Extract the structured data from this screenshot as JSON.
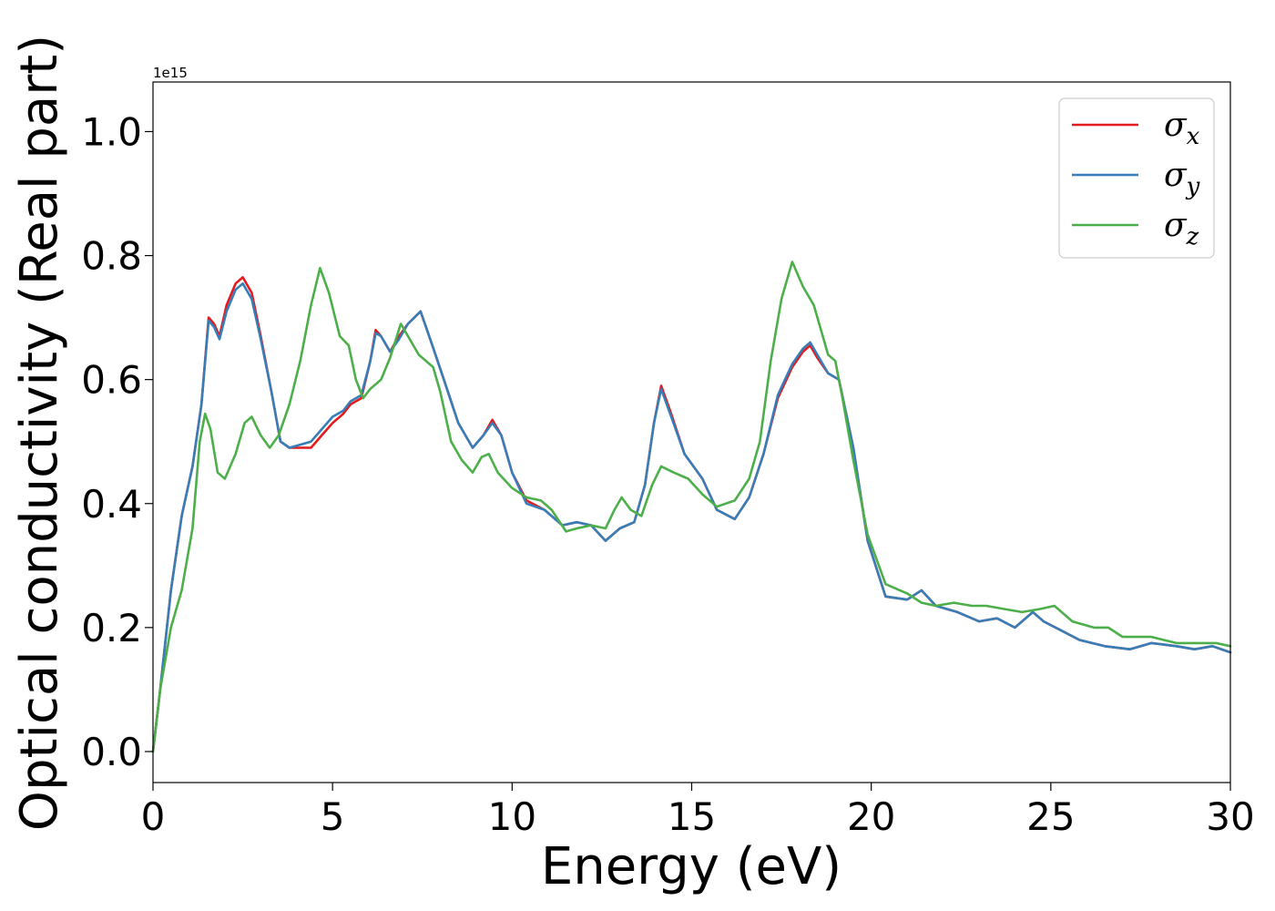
{
  "chart_data": {
    "type": "line",
    "xlabel": "Energy (eV)",
    "ylabel": "Optical conductivity (Real part)",
    "y_offset_label": "1e15",
    "xlim": [
      0,
      30
    ],
    "ylim": [
      -0.05,
      1.08
    ],
    "x_ticks": [
      0,
      5,
      10,
      15,
      20,
      25,
      30
    ],
    "y_ticks": [
      0.0,
      0.2,
      0.4,
      0.6,
      0.8,
      1.0
    ],
    "x_tick_labels": [
      "0",
      "5",
      "10",
      "15",
      "20",
      "25",
      "30"
    ],
    "y_tick_labels": [
      "0.0",
      "0.2",
      "0.4",
      "0.6",
      "0.8",
      "1.0"
    ],
    "grid": false,
    "legend_position": "top-right",
    "series": [
      {
        "name": "σ",
        "subscript": "x",
        "color": "#e41a1c",
        "points": [
          [
            0,
            0
          ],
          [
            0.2,
            0.1
          ],
          [
            0.5,
            0.26
          ],
          [
            0.8,
            0.38
          ],
          [
            1.1,
            0.46
          ],
          [
            1.35,
            0.56
          ],
          [
            1.55,
            0.7
          ],
          [
            1.7,
            0.69
          ],
          [
            1.85,
            0.67
          ],
          [
            2.05,
            0.72
          ],
          [
            2.3,
            0.755
          ],
          [
            2.5,
            0.765
          ],
          [
            2.75,
            0.74
          ],
          [
            3.0,
            0.67
          ],
          [
            3.3,
            0.58
          ],
          [
            3.55,
            0.5
          ],
          [
            3.8,
            0.49
          ],
          [
            4.1,
            0.49
          ],
          [
            4.4,
            0.49
          ],
          [
            4.7,
            0.51
          ],
          [
            5.0,
            0.53
          ],
          [
            5.3,
            0.545
          ],
          [
            5.5,
            0.56
          ],
          [
            5.8,
            0.57
          ],
          [
            6.05,
            0.63
          ],
          [
            6.2,
            0.68
          ],
          [
            6.35,
            0.67
          ],
          [
            6.6,
            0.645
          ],
          [
            6.85,
            0.67
          ],
          [
            7.1,
            0.69
          ],
          [
            7.45,
            0.71
          ],
          [
            7.75,
            0.66
          ],
          [
            8.1,
            0.6
          ],
          [
            8.5,
            0.53
          ],
          [
            8.9,
            0.49
          ],
          [
            9.2,
            0.51
          ],
          [
            9.45,
            0.535
          ],
          [
            9.7,
            0.51
          ],
          [
            10.0,
            0.45
          ],
          [
            10.4,
            0.405
          ],
          [
            10.9,
            0.39
          ],
          [
            11.4,
            0.365
          ],
          [
            11.8,
            0.37
          ],
          [
            12.2,
            0.365
          ],
          [
            12.6,
            0.34
          ],
          [
            13.0,
            0.36
          ],
          [
            13.4,
            0.37
          ],
          [
            13.7,
            0.43
          ],
          [
            13.95,
            0.53
          ],
          [
            14.15,
            0.59
          ],
          [
            14.4,
            0.55
          ],
          [
            14.8,
            0.48
          ],
          [
            15.3,
            0.44
          ],
          [
            15.7,
            0.39
          ],
          [
            16.2,
            0.375
          ],
          [
            16.6,
            0.41
          ],
          [
            17.0,
            0.48
          ],
          [
            17.4,
            0.57
          ],
          [
            17.8,
            0.62
          ],
          [
            18.1,
            0.645
          ],
          [
            18.3,
            0.655
          ],
          [
            18.5,
            0.635
          ],
          [
            18.8,
            0.61
          ],
          [
            19.1,
            0.6
          ],
          [
            19.5,
            0.49
          ],
          [
            19.9,
            0.34
          ],
          [
            20.4,
            0.25
          ],
          [
            21.0,
            0.245
          ],
          [
            21.4,
            0.26
          ],
          [
            21.8,
            0.235
          ],
          [
            22.4,
            0.225
          ],
          [
            23.0,
            0.21
          ],
          [
            23.5,
            0.215
          ],
          [
            24.0,
            0.2
          ],
          [
            24.5,
            0.225
          ],
          [
            24.8,
            0.21
          ],
          [
            25.3,
            0.195
          ],
          [
            25.8,
            0.18
          ],
          [
            26.5,
            0.17
          ],
          [
            27.2,
            0.165
          ],
          [
            27.8,
            0.175
          ],
          [
            28.5,
            0.17
          ],
          [
            29.0,
            0.165
          ],
          [
            29.5,
            0.17
          ],
          [
            30.0,
            0.16
          ]
        ]
      },
      {
        "name": "σ",
        "subscript": "y",
        "color": "#377eb8",
        "points": [
          [
            0,
            0
          ],
          [
            0.2,
            0.1
          ],
          [
            0.5,
            0.26
          ],
          [
            0.8,
            0.38
          ],
          [
            1.1,
            0.46
          ],
          [
            1.35,
            0.56
          ],
          [
            1.55,
            0.695
          ],
          [
            1.7,
            0.685
          ],
          [
            1.85,
            0.665
          ],
          [
            2.05,
            0.71
          ],
          [
            2.3,
            0.745
          ],
          [
            2.5,
            0.755
          ],
          [
            2.75,
            0.73
          ],
          [
            3.0,
            0.665
          ],
          [
            3.3,
            0.58
          ],
          [
            3.55,
            0.5
          ],
          [
            3.8,
            0.49
          ],
          [
            4.1,
            0.495
          ],
          [
            4.4,
            0.5
          ],
          [
            4.7,
            0.52
          ],
          [
            5.0,
            0.54
          ],
          [
            5.3,
            0.55
          ],
          [
            5.5,
            0.565
          ],
          [
            5.8,
            0.575
          ],
          [
            6.05,
            0.63
          ],
          [
            6.2,
            0.675
          ],
          [
            6.35,
            0.67
          ],
          [
            6.6,
            0.645
          ],
          [
            6.85,
            0.665
          ],
          [
            7.1,
            0.69
          ],
          [
            7.45,
            0.71
          ],
          [
            7.75,
            0.66
          ],
          [
            8.1,
            0.6
          ],
          [
            8.5,
            0.53
          ],
          [
            8.9,
            0.49
          ],
          [
            9.2,
            0.51
          ],
          [
            9.45,
            0.53
          ],
          [
            9.7,
            0.51
          ],
          [
            10.0,
            0.45
          ],
          [
            10.4,
            0.4
          ],
          [
            10.9,
            0.39
          ],
          [
            11.4,
            0.365
          ],
          [
            11.8,
            0.37
          ],
          [
            12.2,
            0.365
          ],
          [
            12.6,
            0.34
          ],
          [
            13.0,
            0.36
          ],
          [
            13.4,
            0.37
          ],
          [
            13.7,
            0.43
          ],
          [
            13.95,
            0.53
          ],
          [
            14.15,
            0.585
          ],
          [
            14.4,
            0.545
          ],
          [
            14.8,
            0.48
          ],
          [
            15.3,
            0.44
          ],
          [
            15.7,
            0.39
          ],
          [
            16.2,
            0.375
          ],
          [
            16.6,
            0.41
          ],
          [
            17.0,
            0.48
          ],
          [
            17.4,
            0.575
          ],
          [
            17.8,
            0.625
          ],
          [
            18.1,
            0.65
          ],
          [
            18.3,
            0.66
          ],
          [
            18.5,
            0.64
          ],
          [
            18.8,
            0.61
          ],
          [
            19.1,
            0.6
          ],
          [
            19.5,
            0.49
          ],
          [
            19.9,
            0.34
          ],
          [
            20.4,
            0.25
          ],
          [
            21.0,
            0.245
          ],
          [
            21.4,
            0.26
          ],
          [
            21.8,
            0.235
          ],
          [
            22.4,
            0.225
          ],
          [
            23.0,
            0.21
          ],
          [
            23.5,
            0.215
          ],
          [
            24.0,
            0.2
          ],
          [
            24.5,
            0.225
          ],
          [
            24.8,
            0.21
          ],
          [
            25.3,
            0.195
          ],
          [
            25.8,
            0.18
          ],
          [
            26.5,
            0.17
          ],
          [
            27.2,
            0.165
          ],
          [
            27.8,
            0.175
          ],
          [
            28.5,
            0.17
          ],
          [
            29.0,
            0.165
          ],
          [
            29.5,
            0.17
          ],
          [
            30.0,
            0.16
          ]
        ]
      },
      {
        "name": "σ",
        "subscript": "z",
        "color": "#4daf4a",
        "points": [
          [
            0,
            0
          ],
          [
            0.2,
            0.1
          ],
          [
            0.5,
            0.2
          ],
          [
            0.8,
            0.26
          ],
          [
            1.1,
            0.36
          ],
          [
            1.3,
            0.5
          ],
          [
            1.45,
            0.545
          ],
          [
            1.6,
            0.52
          ],
          [
            1.8,
            0.45
          ],
          [
            2.0,
            0.44
          ],
          [
            2.3,
            0.48
          ],
          [
            2.55,
            0.53
          ],
          [
            2.75,
            0.54
          ],
          [
            3.0,
            0.51
          ],
          [
            3.25,
            0.49
          ],
          [
            3.5,
            0.51
          ],
          [
            3.8,
            0.56
          ],
          [
            4.1,
            0.63
          ],
          [
            4.4,
            0.72
          ],
          [
            4.65,
            0.78
          ],
          [
            4.9,
            0.74
          ],
          [
            5.2,
            0.67
          ],
          [
            5.45,
            0.655
          ],
          [
            5.65,
            0.6
          ],
          [
            5.85,
            0.57
          ],
          [
            6.05,
            0.585
          ],
          [
            6.35,
            0.6
          ],
          [
            6.6,
            0.635
          ],
          [
            6.9,
            0.69
          ],
          [
            7.1,
            0.67
          ],
          [
            7.4,
            0.64
          ],
          [
            7.8,
            0.62
          ],
          [
            8.0,
            0.58
          ],
          [
            8.3,
            0.5
          ],
          [
            8.6,
            0.47
          ],
          [
            8.9,
            0.45
          ],
          [
            9.15,
            0.475
          ],
          [
            9.35,
            0.48
          ],
          [
            9.6,
            0.45
          ],
          [
            10.0,
            0.425
          ],
          [
            10.4,
            0.41
          ],
          [
            10.8,
            0.405
          ],
          [
            11.1,
            0.39
          ],
          [
            11.5,
            0.355
          ],
          [
            11.8,
            0.36
          ],
          [
            12.2,
            0.365
          ],
          [
            12.6,
            0.36
          ],
          [
            12.85,
            0.39
          ],
          [
            13.05,
            0.41
          ],
          [
            13.3,
            0.39
          ],
          [
            13.6,
            0.38
          ],
          [
            13.9,
            0.43
          ],
          [
            14.15,
            0.46
          ],
          [
            14.5,
            0.45
          ],
          [
            14.9,
            0.44
          ],
          [
            15.3,
            0.415
          ],
          [
            15.7,
            0.395
          ],
          [
            16.2,
            0.405
          ],
          [
            16.6,
            0.44
          ],
          [
            16.9,
            0.5
          ],
          [
            17.2,
            0.63
          ],
          [
            17.5,
            0.73
          ],
          [
            17.8,
            0.79
          ],
          [
            18.1,
            0.75
          ],
          [
            18.4,
            0.72
          ],
          [
            18.6,
            0.68
          ],
          [
            18.8,
            0.64
          ],
          [
            19.0,
            0.63
          ],
          [
            19.2,
            0.57
          ],
          [
            19.5,
            0.47
          ],
          [
            19.9,
            0.35
          ],
          [
            20.4,
            0.27
          ],
          [
            21.0,
            0.255
          ],
          [
            21.4,
            0.24
          ],
          [
            21.8,
            0.235
          ],
          [
            22.3,
            0.24
          ],
          [
            22.8,
            0.235
          ],
          [
            23.2,
            0.235
          ],
          [
            23.7,
            0.23
          ],
          [
            24.2,
            0.225
          ],
          [
            24.7,
            0.23
          ],
          [
            25.1,
            0.235
          ],
          [
            25.6,
            0.21
          ],
          [
            26.2,
            0.2
          ],
          [
            26.6,
            0.2
          ],
          [
            27.0,
            0.185
          ],
          [
            27.8,
            0.185
          ],
          [
            28.5,
            0.175
          ],
          [
            29.2,
            0.175
          ],
          [
            29.6,
            0.175
          ],
          [
            30.0,
            0.17
          ]
        ]
      }
    ]
  }
}
